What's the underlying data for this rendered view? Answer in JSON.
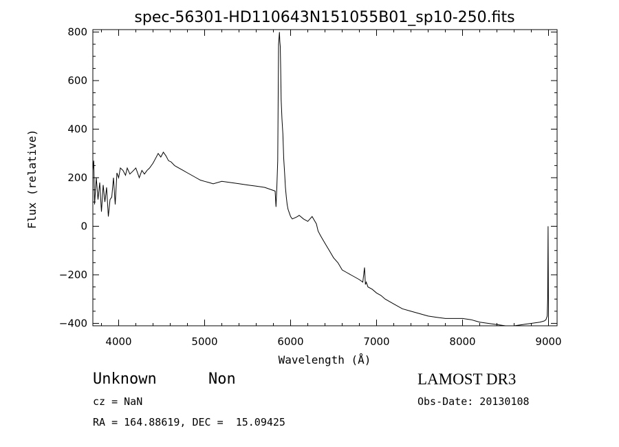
{
  "chart_data": {
    "type": "line",
    "title": "spec-56301-HD110643N151055B01_sp10-250.fits",
    "xlabel": "Wavelength (Å)",
    "ylabel": "Flux (relative)",
    "xlim": [
      3700,
      9100
    ],
    "ylim": [
      -410,
      810
    ],
    "xticks": [
      4000,
      5000,
      6000,
      7000,
      8000,
      9000
    ],
    "yticks": [
      -400,
      -200,
      0,
      200,
      400,
      600,
      800
    ],
    "ytick_labels": [
      "−400",
      "−200",
      "0",
      "200",
      "400",
      "600",
      "800"
    ],
    "grid": false,
    "series": [
      {
        "x": [
          3700,
          3710,
          3720,
          3740,
          3760,
          3780,
          3800,
          3820,
          3840,
          3860,
          3880,
          3900,
          3920,
          3940,
          3960,
          3980,
          4000,
          4020,
          4050,
          4080,
          4100,
          4130,
          4160,
          4200,
          4240,
          4270,
          4300,
          4330,
          4360,
          4400,
          4430,
          4460,
          4490,
          4520,
          4550,
          4580,
          4610,
          4650,
          4700,
          4750,
          4800,
          4850,
          4900,
          4950,
          5000,
          5050,
          5100,
          5200,
          5300,
          5400,
          5500,
          5600,
          5700,
          5780,
          5820,
          5830,
          5840,
          5850,
          5860,
          5870,
          5875,
          5880,
          5885,
          5890,
          5900,
          5910,
          5920,
          5930,
          5940,
          5950,
          5960,
          5970,
          5980,
          5990,
          6000,
          6020,
          6050,
          6080,
          6100,
          6150,
          6200,
          6250,
          6300,
          6320,
          6350,
          6400,
          6450,
          6500,
          6550,
          6600,
          6650,
          6700,
          6750,
          6800,
          6840,
          6860,
          6870,
          6880,
          6900,
          6950,
          7000,
          7050,
          7100,
          7200,
          7300,
          7400,
          7500,
          7600,
          7700,
          7800,
          7900,
          8000,
          8100,
          8150,
          8200,
          8300,
          8400,
          8500,
          8600,
          8700,
          8800,
          8900,
          8950,
          8970,
          8985,
          8990,
          8995,
          9000
        ],
        "y": [
          230,
          270,
          90,
          200,
          110,
          180,
          60,
          170,
          100,
          160,
          40,
          110,
          120,
          200,
          90,
          220,
          200,
          240,
          230,
          210,
          240,
          215,
          225,
          240,
          200,
          230,
          215,
          230,
          240,
          260,
          280,
          300,
          285,
          305,
          290,
          270,
          265,
          250,
          240,
          230,
          220,
          210,
          200,
          190,
          185,
          180,
          175,
          185,
          180,
          175,
          170,
          165,
          160,
          150,
          145,
          80,
          160,
          270,
          750,
          800,
          760,
          740,
          650,
          520,
          440,
          380,
          280,
          220,
          160,
          120,
          90,
          70,
          60,
          50,
          40,
          30,
          35,
          40,
          45,
          30,
          20,
          40,
          10,
          -20,
          -40,
          -70,
          -100,
          -130,
          -150,
          -180,
          -190,
          -200,
          -210,
          -220,
          -230,
          -170,
          -240,
          -230,
          -250,
          -260,
          -275,
          -285,
          -300,
          -320,
          -340,
          -350,
          -360,
          -370,
          -375,
          -380,
          -380,
          -380,
          -385,
          -390,
          -395,
          -400,
          -405,
          -410,
          -410,
          -405,
          -400,
          -395,
          -390,
          -385,
          -370,
          -300,
          0,
          -400
        ]
      }
    ]
  },
  "info": {
    "class_label": "Unknown",
    "subclass_label": "Non",
    "redshift": "cz = NaN",
    "coordinates": "RA = 164.88619, DEC =  15.09425",
    "survey": "LAMOST DR3",
    "obs_date": "Obs-Date: 20130108"
  }
}
